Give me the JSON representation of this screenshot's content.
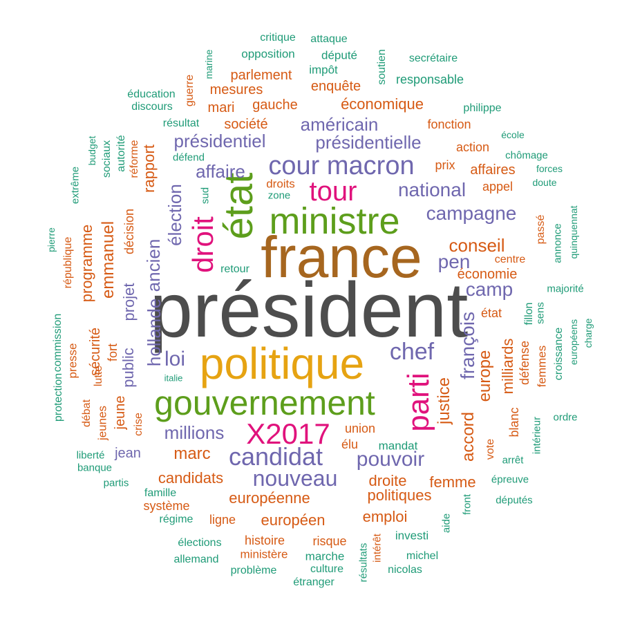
{
  "colors": {
    "gray": "#4d4d4d",
    "brown": "#a6661f",
    "green": "#5d9e1c",
    "orange": "#e6a312",
    "pink": "#e0127c",
    "purple": "#6f67ae",
    "rust": "#d65a14",
    "teal": "#1f9b77"
  },
  "words": [
    "président",
    "france",
    "politique",
    "gouvernement",
    "ministre",
    "état",
    "parti",
    "X2017",
    "cour macron",
    "tour",
    "chef",
    "droit",
    "candidat",
    "nouveau",
    "pouvoir",
    "loi",
    "national",
    "campagne",
    "présidentielle",
    "présidentiel",
    "américain",
    "affaire",
    "millions",
    "pen",
    "conseil",
    "camp",
    "françois",
    "europe",
    "justice",
    "accord",
    "élection",
    "ancien",
    "hollande",
    "emmanuel",
    "public",
    "projet",
    "européenne",
    "européen",
    "candidats",
    "marc",
    "économique",
    "société",
    "gauche",
    "mari",
    "mesures",
    "parlement",
    "enquête",
    "politiques",
    "emploi",
    "droite",
    "femme",
    "union",
    "élu",
    "jean",
    "milliards",
    "rapport",
    "programme",
    "sécurité",
    "jeune",
    "fort",
    "lutte",
    "décision",
    "réforme",
    "autorité",
    "sociaux",
    "budget",
    "extrême",
    "république",
    "presse",
    "commission",
    "protection",
    "débat",
    "jeunes",
    "crise",
    "état",
    "économie",
    "centre",
    "passé",
    "fillon",
    "défense",
    "femmes",
    "blanc",
    "vote",
    "affaires",
    "appel",
    "prix",
    "action",
    "fonction",
    "droits",
    "zone",
    "sud",
    "retour",
    "résultat",
    "défend",
    "ligne",
    "système",
    "histoire",
    "risque",
    "ministère",
    "intérêt",
    "marche",
    "investi",
    "aide",
    "front",
    "mandat",
    "arrêt",
    "intérieur",
    "ordre",
    "croissance",
    "européens",
    "charge",
    "sens",
    "majorité",
    "annonce",
    "quinquennat",
    "doute",
    "forces",
    "chômage",
    "école",
    "philippe",
    "responsable",
    "secrétaire",
    "soutien",
    "député",
    "impôt",
    "attaque",
    "critique",
    "opposition",
    "marine",
    "guerre",
    "éducation",
    "discours",
    "pierre",
    "italie",
    "liberté",
    "banque",
    "partis",
    "famille",
    "régime",
    "élections",
    "allemand",
    "problème",
    "culture",
    "étranger",
    "résultats",
    "nicolas",
    "michel",
    "épreuve",
    "députés"
  ]
}
